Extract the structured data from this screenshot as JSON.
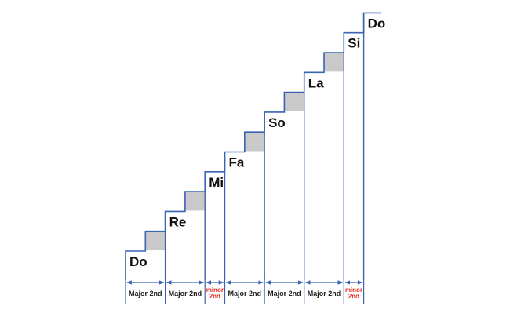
{
  "colors": {
    "line": "#3a63b4",
    "half_step_fill": "#c9c9c9",
    "note_text": "#111111",
    "major_text": "#222222",
    "minor_text": "#e8231d"
  },
  "notes": [
    {
      "label": "Do"
    },
    {
      "label": "Re"
    },
    {
      "label": "Mi"
    },
    {
      "label": "Fa"
    },
    {
      "label": "So"
    },
    {
      "label": "La"
    },
    {
      "label": "Si"
    },
    {
      "label": "Do"
    }
  ],
  "intervals": [
    {
      "kind": "major",
      "lines": [
        "Major 2nd"
      ]
    },
    {
      "kind": "major",
      "lines": [
        "Major 2nd"
      ]
    },
    {
      "kind": "minor",
      "lines": [
        "minor",
        "2nd"
      ]
    },
    {
      "kind": "major",
      "lines": [
        "Major 2nd"
      ]
    },
    {
      "kind": "major",
      "lines": [
        "Major 2nd"
      ]
    },
    {
      "kind": "major",
      "lines": [
        "Major 2nd"
      ]
    },
    {
      "kind": "minor",
      "lines": [
        "minor",
        "2nd"
      ]
    }
  ]
}
